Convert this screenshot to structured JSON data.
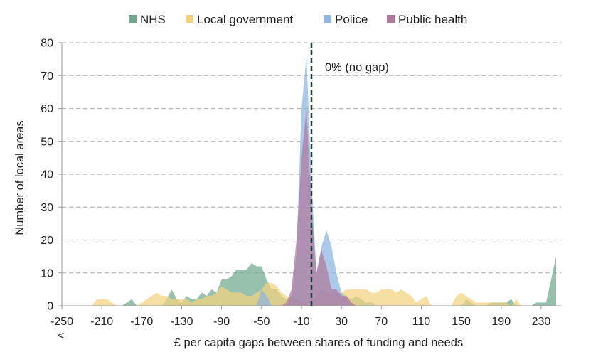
{
  "chart_data": {
    "type": "area",
    "title": "",
    "xlabel": "£ per capita gaps between shares of funding and needs",
    "ylabel": "Number of local areas",
    "xlim": [
      -250,
      250
    ],
    "ylim": [
      0,
      80
    ],
    "y_ticks": [
      0,
      10,
      20,
      30,
      40,
      50,
      60,
      70,
      80
    ],
    "x_ticks": [
      "-250",
      "-210",
      "-170",
      "-130",
      "-90",
      "-50",
      "-10",
      "30",
      "70",
      "110",
      "150",
      "190",
      "230"
    ],
    "x_tick_values": [
      -250,
      -210,
      -170,
      -130,
      -90,
      -50,
      -10,
      30,
      70,
      110,
      150,
      190,
      230
    ],
    "x_tick_sub": "<",
    "grid": "horizontal dashed",
    "legend_position": "top",
    "annotation": {
      "text": "0% (no gap)",
      "x": 0,
      "style": "dashed vertical line"
    },
    "series": [
      {
        "name": "NHS",
        "color": "#6FA88E",
        "points": [
          [
            -250,
            0
          ],
          [
            -190,
            0
          ],
          [
            -185,
            1
          ],
          [
            -180,
            2
          ],
          [
            -175,
            0
          ],
          [
            -150,
            0
          ],
          [
            -145,
            2
          ],
          [
            -140,
            5
          ],
          [
            -135,
            2
          ],
          [
            -130,
            1
          ],
          [
            -125,
            3
          ],
          [
            -120,
            2
          ],
          [
            -115,
            2
          ],
          [
            -110,
            4
          ],
          [
            -105,
            3
          ],
          [
            -100,
            5
          ],
          [
            -95,
            4
          ],
          [
            -90,
            8
          ],
          [
            -85,
            8
          ],
          [
            -80,
            9
          ],
          [
            -75,
            11
          ],
          [
            -70,
            11
          ],
          [
            -65,
            11
          ],
          [
            -60,
            13
          ],
          [
            -55,
            12
          ],
          [
            -50,
            12
          ],
          [
            -45,
            8
          ],
          [
            -40,
            5
          ],
          [
            -35,
            5
          ],
          [
            -30,
            3
          ],
          [
            -25,
            2
          ],
          [
            -20,
            3
          ],
          [
            -15,
            2
          ],
          [
            -10,
            1
          ],
          [
            -5,
            1
          ],
          [
            0,
            2
          ],
          [
            5,
            3
          ],
          [
            10,
            5
          ],
          [
            15,
            4
          ],
          [
            20,
            3
          ],
          [
            25,
            4
          ],
          [
            30,
            4
          ],
          [
            35,
            3
          ],
          [
            40,
            2
          ],
          [
            45,
            3
          ],
          [
            50,
            2
          ],
          [
            55,
            1
          ],
          [
            60,
            1
          ],
          [
            65,
            0
          ],
          [
            150,
            0
          ],
          [
            155,
            2
          ],
          [
            160,
            1
          ],
          [
            165,
            0
          ],
          [
            175,
            0
          ],
          [
            180,
            1
          ],
          [
            185,
            1
          ],
          [
            190,
            1
          ],
          [
            195,
            1
          ],
          [
            200,
            2
          ],
          [
            205,
            0
          ],
          [
            220,
            0
          ],
          [
            225,
            1
          ],
          [
            230,
            1
          ],
          [
            235,
            1
          ],
          [
            240,
            8
          ],
          [
            245,
            15
          ]
        ]
      },
      {
        "name": "Local government",
        "color": "#F3D27E",
        "points": [
          [
            -250,
            0
          ],
          [
            -220,
            0
          ],
          [
            -215,
            2
          ],
          [
            -210,
            2
          ],
          [
            -205,
            2
          ],
          [
            -200,
            1
          ],
          [
            -195,
            0
          ],
          [
            -175,
            0
          ],
          [
            -170,
            1
          ],
          [
            -165,
            2
          ],
          [
            -160,
            3
          ],
          [
            -155,
            4
          ],
          [
            -150,
            3
          ],
          [
            -145,
            3
          ],
          [
            -140,
            2
          ],
          [
            -135,
            2
          ],
          [
            -130,
            2
          ],
          [
            -125,
            2
          ],
          [
            -120,
            1
          ],
          [
            -115,
            2
          ],
          [
            -110,
            2
          ],
          [
            -105,
            3
          ],
          [
            -100,
            3
          ],
          [
            -95,
            4
          ],
          [
            -90,
            6
          ],
          [
            -85,
            5
          ],
          [
            -80,
            4
          ],
          [
            -75,
            4
          ],
          [
            -70,
            4
          ],
          [
            -65,
            3
          ],
          [
            -60,
            3
          ],
          [
            -55,
            4
          ],
          [
            -50,
            5
          ],
          [
            -45,
            7
          ],
          [
            -40,
            7
          ],
          [
            -35,
            6
          ],
          [
            -30,
            4
          ],
          [
            -25,
            3
          ],
          [
            -20,
            2
          ],
          [
            -15,
            1
          ],
          [
            -10,
            1
          ],
          [
            -5,
            1
          ],
          [
            0,
            2
          ],
          [
            5,
            3
          ],
          [
            10,
            4
          ],
          [
            15,
            4
          ],
          [
            20,
            4
          ],
          [
            25,
            3
          ],
          [
            30,
            4
          ],
          [
            35,
            5
          ],
          [
            40,
            5
          ],
          [
            45,
            5
          ],
          [
            50,
            5
          ],
          [
            55,
            5
          ],
          [
            60,
            4
          ],
          [
            65,
            4
          ],
          [
            70,
            5
          ],
          [
            75,
            5
          ],
          [
            80,
            5
          ],
          [
            85,
            4
          ],
          [
            90,
            5
          ],
          [
            95,
            4
          ],
          [
            100,
            3
          ],
          [
            105,
            1
          ],
          [
            110,
            2
          ],
          [
            115,
            3
          ],
          [
            120,
            0
          ],
          [
            140,
            0
          ],
          [
            145,
            3
          ],
          [
            150,
            4
          ],
          [
            155,
            3
          ],
          [
            160,
            2
          ],
          [
            165,
            1
          ],
          [
            170,
            1
          ],
          [
            175,
            1
          ],
          [
            180,
            1
          ],
          [
            185,
            1
          ],
          [
            190,
            1
          ],
          [
            195,
            1
          ],
          [
            200,
            0
          ],
          [
            205,
            2
          ],
          [
            210,
            0
          ],
          [
            250,
            0
          ]
        ]
      },
      {
        "name": "Police",
        "color": "#8DB4E2",
        "points": [
          [
            -250,
            0
          ],
          [
            -55,
            0
          ],
          [
            -50,
            5
          ],
          [
            -45,
            3
          ],
          [
            -40,
            0
          ],
          [
            -25,
            0
          ],
          [
            -20,
            3
          ],
          [
            -15,
            16
          ],
          [
            -10,
            60
          ],
          [
            -5,
            76
          ],
          [
            0,
            38
          ],
          [
            5,
            10
          ],
          [
            10,
            18
          ],
          [
            15,
            23
          ],
          [
            20,
            18
          ],
          [
            25,
            10
          ],
          [
            30,
            4
          ],
          [
            35,
            2
          ],
          [
            40,
            0
          ],
          [
            250,
            0
          ]
        ]
      },
      {
        "name": "Public health",
        "color": "#B07A9E",
        "points": [
          [
            -250,
            0
          ],
          [
            -30,
            0
          ],
          [
            -25,
            1
          ],
          [
            -20,
            5
          ],
          [
            -15,
            20
          ],
          [
            -10,
            45
          ],
          [
            -5,
            60
          ],
          [
            0,
            30
          ],
          [
            5,
            10
          ],
          [
            10,
            17
          ],
          [
            15,
            12
          ],
          [
            20,
            5
          ],
          [
            25,
            5
          ],
          [
            30,
            3
          ],
          [
            35,
            3
          ],
          [
            40,
            1
          ],
          [
            45,
            0
          ],
          [
            250,
            0
          ]
        ]
      }
    ]
  }
}
